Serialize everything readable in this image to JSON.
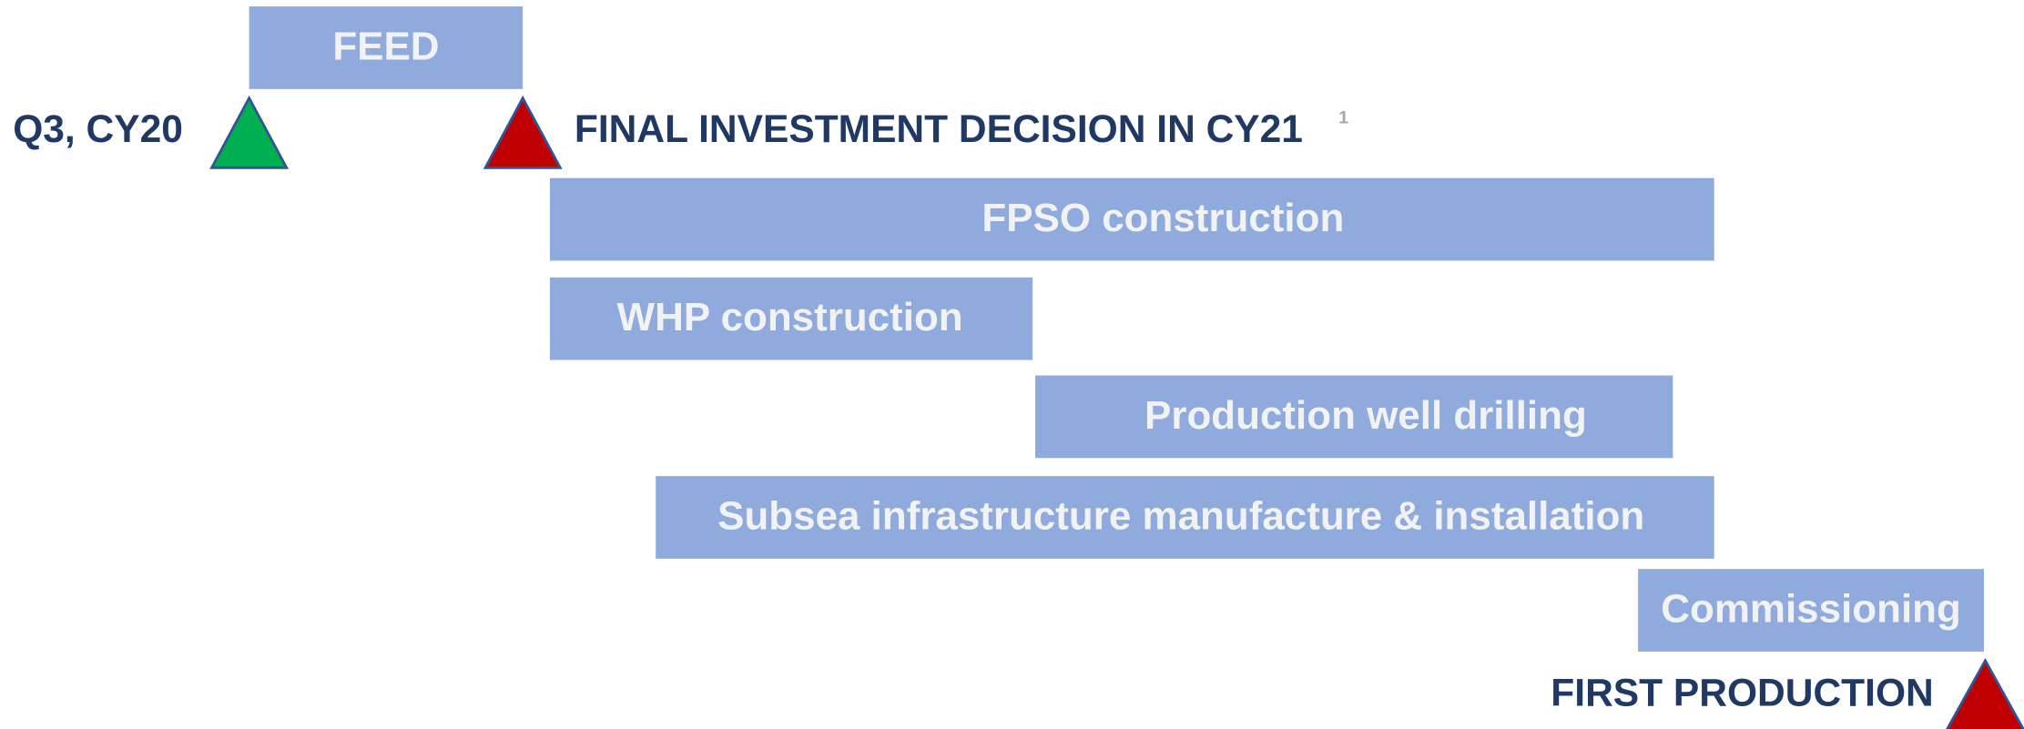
{
  "bars": [
    {
      "label": "FEED"
    },
    {
      "label": "FPSO construction"
    },
    {
      "label": "WHP construction"
    },
    {
      "label": "Production well drilling"
    },
    {
      "label": "Subsea infrastructure manufacture & installation"
    },
    {
      "label": "Commissioning"
    }
  ],
  "milestones": [
    {
      "label": "Q3, CY20"
    },
    {
      "label": "FINAL INVESTMENT DECISION IN CY21",
      "footnote": "1"
    },
    {
      "label": "FIRST PRODUCTION"
    }
  ]
}
